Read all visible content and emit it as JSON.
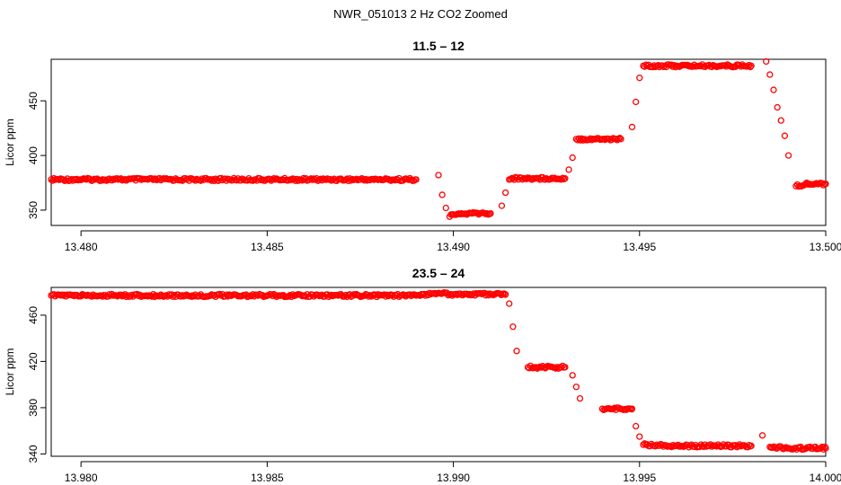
{
  "figure": {
    "title": "NWR_051013  2 Hz CO2 Zoomed"
  },
  "chart_data": [
    {
      "type": "scatter",
      "title": "11.5 – 12",
      "xlabel": "",
      "ylabel": "Licor ppm",
      "xlim": [
        13.4792,
        13.5
      ],
      "ylim": [
        336,
        488
      ],
      "x_ticks": [
        13.48,
        13.485,
        13.49,
        13.495,
        13.5
      ],
      "x_tick_labels": [
        "13.480",
        "13.485",
        "13.490",
        "13.495",
        "13.500"
      ],
      "y_ticks": [
        350,
        400,
        450
      ],
      "y_tick_labels": [
        "350",
        "400",
        "450"
      ],
      "color": "#ff0000",
      "grid": false,
      "series": [
        {
          "x": [
            13.4792,
            13.48,
            13.481,
            13.482,
            13.483,
            13.484,
            13.485,
            13.486,
            13.487,
            13.488,
            13.489,
            13.4896,
            13.4897,
            13.4898,
            13.4899,
            13.49,
            13.4905,
            13.491,
            13.4913,
            13.4914,
            13.4915,
            13.4916,
            13.492,
            13.4925,
            13.493,
            13.4931,
            13.4932,
            13.4933,
            13.4935,
            13.494,
            13.4945,
            13.4948,
            13.4949,
            13.495,
            13.4951,
            13.496,
            13.497,
            13.498,
            13.4984,
            13.4985,
            13.4986,
            13.4987,
            13.4988,
            13.4989,
            13.499,
            13.4992,
            13.4995,
            13.5
          ],
          "y": [
            378,
            378,
            378,
            378,
            378,
            378,
            378,
            378,
            378,
            378,
            378,
            382,
            364,
            352,
            344,
            346,
            347,
            347,
            354,
            366,
            378,
            379,
            379,
            379,
            379,
            387,
            398,
            415,
            415,
            415,
            415,
            426,
            449,
            471,
            482,
            482,
            482,
            482,
            486,
            474,
            460,
            444,
            432,
            418,
            400,
            372,
            374,
            374
          ]
        }
      ]
    },
    {
      "type": "scatter",
      "title": "23.5 – 24",
      "xlabel": "",
      "ylabel": "Licor ppm",
      "xlim": [
        13.9792,
        14.0
      ],
      "ylim": [
        338,
        484
      ],
      "x_ticks": [
        13.98,
        13.985,
        13.99,
        13.995,
        14.0
      ],
      "x_tick_labels": [
        "13.980",
        "13.985",
        "13.990",
        "13.995",
        "14.000"
      ],
      "y_ticks": [
        340,
        380,
        420,
        460
      ],
      "y_tick_labels": [
        "340",
        "380",
        "420",
        "460"
      ],
      "color": "#ff0000",
      "grid": false,
      "series": [
        {
          "x": [
            13.9792,
            13.98,
            13.981,
            13.982,
            13.983,
            13.984,
            13.985,
            13.986,
            13.987,
            13.988,
            13.989,
            13.9895,
            13.99,
            13.991,
            13.9914,
            13.9915,
            13.9916,
            13.9917,
            13.992,
            13.9925,
            13.993,
            13.9932,
            13.9933,
            13.9934,
            13.994,
            13.9945,
            13.9948,
            13.9949,
            13.995,
            13.9951,
            13.996,
            13.997,
            13.998,
            13.9983,
            13.9985,
            13.999,
            14.0
          ],
          "y": [
            477,
            477,
            477,
            477,
            477,
            477,
            477,
            477,
            477,
            477,
            477,
            479,
            478,
            478,
            478,
            470,
            450,
            429,
            415,
            415,
            415,
            408,
            398,
            388,
            379,
            379,
            379,
            364,
            355,
            348,
            347,
            347,
            347,
            356,
            346,
            345,
            345
          ]
        }
      ]
    }
  ]
}
